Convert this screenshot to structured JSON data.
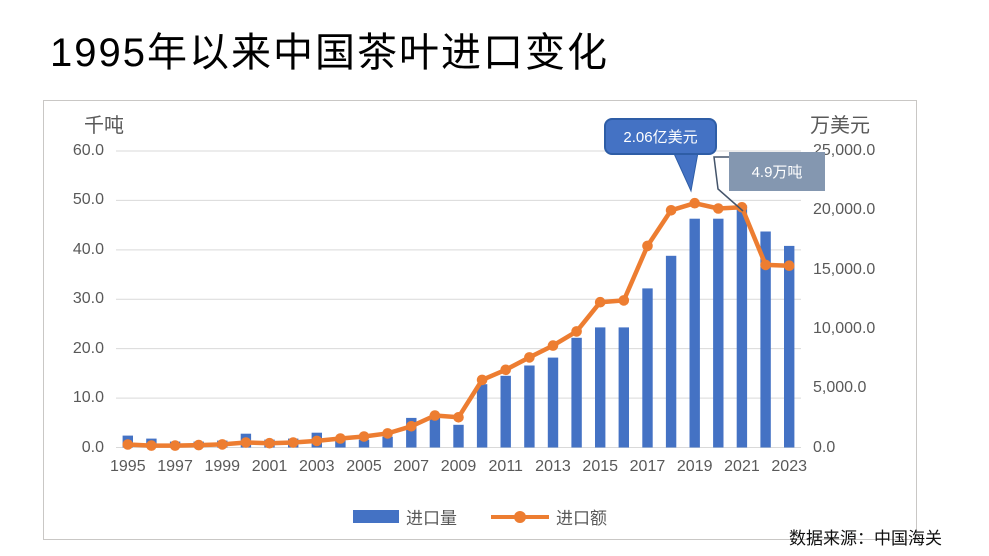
{
  "page": {
    "title": "1995年以来中国茶叶进口变化",
    "source": "数据来源：中国海关"
  },
  "chart_data": {
    "type": "bar",
    "subtype": "bar-line-combo",
    "categories": [
      "1995",
      "1996",
      "1997",
      "1998",
      "1999",
      "2000",
      "2001",
      "2002",
      "2003",
      "2004",
      "2005",
      "2006",
      "2007",
      "2008",
      "2009",
      "2010",
      "2011",
      "2012",
      "2013",
      "2014",
      "2015",
      "2016",
      "2017",
      "2018",
      "2019",
      "2020",
      "2021",
      "2022",
      "2023"
    ],
    "x_tick_labels": [
      "1995",
      "1997",
      "1999",
      "2001",
      "2003",
      "2005",
      "2007",
      "2009",
      "2011",
      "2013",
      "2015",
      "2017",
      "2019",
      "2021",
      "2023"
    ],
    "series": [
      {
        "name": "进口量",
        "type": "bar",
        "axis": "left",
        "unit": "千吨",
        "values": [
          2.4,
          1.8,
          1.2,
          1.2,
          1.4,
          2.8,
          1.6,
          1.8,
          3.0,
          1.8,
          1.6,
          2.2,
          6.0,
          6.7,
          4.6,
          12.8,
          14.5,
          16.6,
          18.2,
          22.2,
          24.3,
          24.3,
          32.2,
          38.8,
          46.3,
          46.3,
          49.0,
          43.7,
          40.8
        ]
      },
      {
        "name": "进口额",
        "type": "line",
        "axis": "right",
        "unit": "万美元",
        "values": [
          250,
          160,
          160,
          200,
          260,
          420,
          360,
          420,
          560,
          760,
          930,
          1190,
          1790,
          2700,
          2550,
          5700,
          6550,
          7600,
          8590,
          9790,
          12250,
          12400,
          17000,
          20000,
          20600,
          20150,
          20250,
          15400,
          15330
        ]
      }
    ],
    "left_axis": {
      "title": "千吨",
      "min": 0,
      "max": 60,
      "tick_labels": [
        "60.0",
        "50.0",
        "40.0",
        "30.0",
        "20.0",
        "10.0",
        "0.0"
      ]
    },
    "right_axis": {
      "title": "万美元",
      "min": 0,
      "max": 25000,
      "tick_labels": [
        "25,000.0",
        "20,000.0",
        "15,000.0",
        "10,000.0",
        "5,000.0",
        "0.0"
      ]
    },
    "grid": "horizontal",
    "legend_position": "bottom",
    "annotations": [
      {
        "text": "2.06亿美元",
        "target_year": "2019",
        "series": "进口额",
        "style": "blue-callout"
      },
      {
        "text": "4.9万吨",
        "target_year": "2021",
        "series": "进口量",
        "style": "gray-box"
      }
    ]
  },
  "legend": {
    "volume_label": "进口量",
    "value_label": "进口额"
  },
  "colors": {
    "bar": "#4472C4",
    "line": "#ED7D31",
    "callout_fill": "#4472C4",
    "callout_border": "#2E5DA6",
    "gray_box": "#8497B0",
    "leader": "#44546A",
    "grid": "#D9D9D9",
    "tick_text": "#595959",
    "frame_border": "#C9C7C5"
  }
}
